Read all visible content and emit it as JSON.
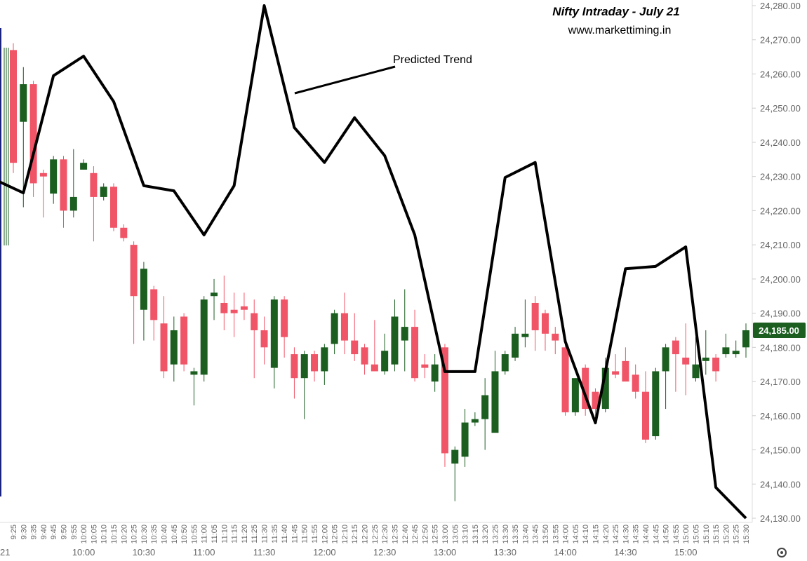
{
  "chart_data": {
    "type": "candlestick",
    "title": "Nifty Intraday - July 21",
    "subtitle": "www.markettiming.in",
    "annotation": "Predicted Trend",
    "date_label": "21",
    "up_color": "#1b5e20",
    "down_color": "#f05467",
    "categories": [
      "9:25",
      "9:30",
      "9:35",
      "9:40",
      "9:45",
      "9:50",
      "9:55",
      "10:00",
      "10:05",
      "10:10",
      "10:15",
      "10:20",
      "10:25",
      "10:30",
      "10:35",
      "10:40",
      "10:45",
      "10:50",
      "10:55",
      "11:00",
      "11:05",
      "11:10",
      "11:15",
      "11:20",
      "11:25",
      "11:30",
      "11:35",
      "11:40",
      "11:45",
      "11:50",
      "11:55",
      "12:00",
      "12:05",
      "12:10",
      "12:15",
      "12:20",
      "12:25",
      "12:30",
      "12:35",
      "12:40",
      "12:45",
      "12:50",
      "12:55",
      "13:00",
      "13:05",
      "13:10",
      "13:15",
      "13:20",
      "13:25",
      "13:30",
      "13:35",
      "13:40",
      "13:45",
      "13:50",
      "13:55",
      "14:00",
      "14:05",
      "14:10",
      "14:15",
      "14:20",
      "14:25",
      "14:30",
      "14:35",
      "14:40",
      "14:45",
      "14:50",
      "14:55",
      "15:00",
      "15:05",
      "15:10",
      "15:15",
      "15:20",
      "15:25",
      "15:30"
    ],
    "major_labels": [
      "10:00",
      "10:30",
      "11:00",
      "11:30",
      "12:00",
      "12:30",
      "13:00",
      "13:30",
      "14:00",
      "14:30",
      "15:00"
    ],
    "open": [
      24267,
      24246,
      24257,
      24231,
      24225,
      24235,
      24220,
      24232,
      24231,
      24224,
      24227,
      24215,
      24210,
      24191,
      24197,
      24187,
      24175,
      24189,
      24172,
      24172,
      24195,
      24193,
      24191,
      24192,
      24190,
      24185,
      24174,
      24194,
      24178,
      24171,
      24178,
      24173,
      24181,
      24190,
      24182,
      24180,
      24175,
      24173,
      24175,
      24182,
      24186,
      24175,
      24170,
      24180,
      24146,
      24148,
      24158,
      24159,
      24155,
      24173,
      24177,
      24183,
      24193,
      24190,
      24184,
      24180,
      24161,
      24174,
      24167,
      24162,
      24173,
      24176,
      24172,
      24167,
      24154,
      24173,
      24182,
      24177,
      24171,
      24176,
      24177,
      24178,
      24178,
      24180
    ],
    "high": [
      24269,
      24262,
      24258,
      24232,
      24236,
      24236,
      24238,
      24235,
      24233,
      24228,
      24228,
      24216,
      24211,
      24205,
      24198,
      24195,
      24189,
      24190,
      24174,
      24195,
      24200,
      24201,
      24196,
      24196,
      24194,
      24189,
      24195,
      24195,
      24180,
      24179,
      24179,
      24181,
      24191,
      24196,
      24190,
      24181,
      24188,
      24184,
      24194,
      24197,
      24191,
      24178,
      24178,
      24181,
      24151,
      24162,
      24161,
      24171,
      24179,
      24179,
      24186,
      24194,
      24195,
      24191,
      24186,
      24181,
      24171,
      24175,
      24168,
      24177,
      24178,
      24180,
      24175,
      24173,
      24174,
      24181,
      24183,
      24187,
      24183,
      24185,
      24178,
      24184,
      24182,
      24187
    ],
    "low": [
      24231,
      24221,
      24224,
      24218,
      24222,
      24215,
      24218,
      24232,
      24211,
      24223,
      24214,
      24211,
      24181,
      24182,
      24182,
      24171,
      24170,
      24173,
      24163,
      24170,
      24188,
      24185,
      24183,
      24188,
      24171,
      24175,
      24168,
      24177,
      24165,
      24159,
      24170,
      24169,
      24178,
      24178,
      24176,
      24172,
      24173,
      24172,
      24173,
      24173,
      24170,
      24171,
      24167,
      24145,
      24135,
      24145,
      24157,
      24150,
      24156,
      24172,
      24176,
      24180,
      24179,
      24179,
      24178,
      24160,
      24160,
      24160,
      24160,
      24161,
      24171,
      24170,
      24165,
      24152,
      24153,
      24162,
      24167,
      24166,
      24170,
      24172,
      24170,
      24177,
      24177,
      24177
    ],
    "close": [
      24234,
      24257,
      24228,
      24230,
      24235,
      24220,
      24224,
      24234,
      24224,
      24227,
      24215,
      24212,
      24195,
      24203,
      24188,
      24173,
      24185,
      24175,
      24173,
      24194,
      24196,
      24190,
      24190,
      24191,
      24185,
      24180,
      24194,
      24183,
      24171,
      24178,
      24173,
      24180,
      24190,
      24182,
      24178,
      24175,
      24173,
      24179,
      24189,
      24186,
      24171,
      24174,
      24175,
      24149,
      24150,
      24158,
      24159,
      24166,
      24173,
      24178,
      24184,
      24184,
      24185,
      24184,
      24182,
      24161,
      24171,
      24162,
      24162,
      24174,
      24172,
      24170,
      24167,
      24153,
      24173,
      24180,
      24178,
      24175,
      24175,
      24177,
      24173,
      24180,
      24179,
      24185
    ],
    "trend": {
      "name": "Predicted Trend",
      "color": "#000000",
      "x": [
        "9:15",
        "9:30",
        "9:45",
        "10:00",
        "10:15",
        "10:30",
        "10:45",
        "11:00",
        "11:15",
        "11:30",
        "11:45",
        "12:00",
        "12:15",
        "12:30",
        "12:45",
        "13:00",
        "13:15",
        "13:30",
        "13:45",
        "14:00",
        "14:15",
        "14:30",
        "14:45",
        "15:00",
        "15:15",
        "15:30"
      ],
      "values": [
        24229.3,
        24225.2,
        24259.5,
        24265.2,
        24251.9,
        24227.3,
        24225.8,
        24212.9,
        24227.3,
        24280,
        24244.3,
        24234.1,
        24247.2,
        24236.1,
        24212.9,
        24172.9,
        24172.9,
        24229.7,
        24234.1,
        24181.7,
        24157.9,
        24203,
        24203.7,
        24209.4,
        24139,
        24130
      ]
    },
    "last_price": {
      "value": 24185,
      "label": "24,185.00"
    },
    "ylim": [
      24130,
      24280
    ],
    "yticks": [
      {
        "value": 24280,
        "label": "24,280.00"
      },
      {
        "value": 24270,
        "label": "24,270.00"
      },
      {
        "value": 24260,
        "label": "24,260.00"
      },
      {
        "value": 24250,
        "label": "24,250.00"
      },
      {
        "value": 24240,
        "label": "24,240.00"
      },
      {
        "value": 24230,
        "label": "24,230.00"
      },
      {
        "value": 24220,
        "label": "24,220.00"
      },
      {
        "value": 24210,
        "label": "24,210.00"
      },
      {
        "value": 24200,
        "label": "24,200.00"
      },
      {
        "value": 24190,
        "label": "24,190.00"
      },
      {
        "value": 24180,
        "label": "24,180.00"
      },
      {
        "value": 24170,
        "label": "24,170.00"
      },
      {
        "value": 24160,
        "label": "24,160.00"
      },
      {
        "value": 24150,
        "label": "24,150.00"
      },
      {
        "value": 24140,
        "label": "24,140.00"
      },
      {
        "value": 24130,
        "label": "24,130.00"
      }
    ],
    "grid": false
  }
}
